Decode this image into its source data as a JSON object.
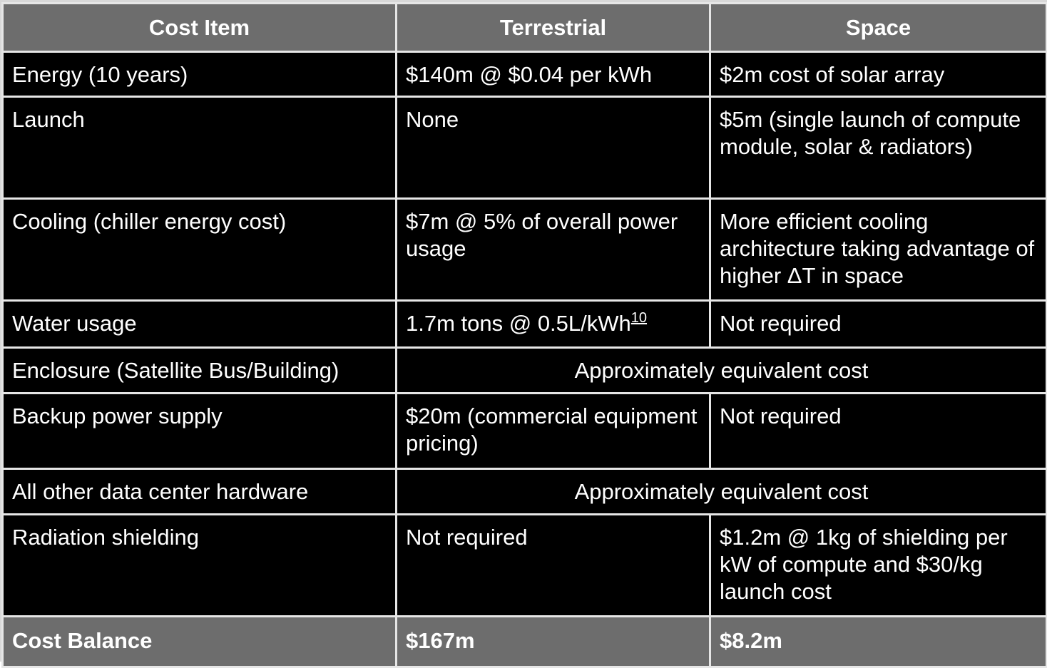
{
  "table": {
    "headers": [
      "Cost Item",
      "Terrestrial",
      "Space"
    ],
    "rows": [
      {
        "item": "Energy (10 years)",
        "terrestrial": "$140m @ $0.04 per kWh",
        "space": "$2m cost of solar array"
      },
      {
        "item": "Launch",
        "terrestrial": "None",
        "space": "$5m (single launch of compute module, solar & radiators)"
      },
      {
        "item": "Cooling (chiller energy cost)",
        "terrestrial": "$7m @ 5% of overall power usage",
        "space": "More efficient cooling architecture taking advantage of higher ΔT in space"
      },
      {
        "item": "Water usage",
        "terrestrial": "1.7m tons @ 0.5L/kWh",
        "terrestrial_ref": "10",
        "space": "Not required"
      },
      {
        "item": "Enclosure (Satellite Bus/Building)",
        "shared": "Approximately equivalent cost"
      },
      {
        "item": "Backup power supply",
        "terrestrial": "$20m (commercial equipment pricing)",
        "space": "Not required"
      },
      {
        "item": "All other data center hardware",
        "shared": "Approximately equivalent cost"
      },
      {
        "item": "Radiation shielding",
        "terrestrial": "Not required",
        "space": "$1.2m @ 1kg of shielding per kW of compute and $30/kg launch cost"
      }
    ],
    "footer": {
      "item": "Cost Balance",
      "terrestrial": "$167m",
      "space": "$8.2m"
    }
  }
}
